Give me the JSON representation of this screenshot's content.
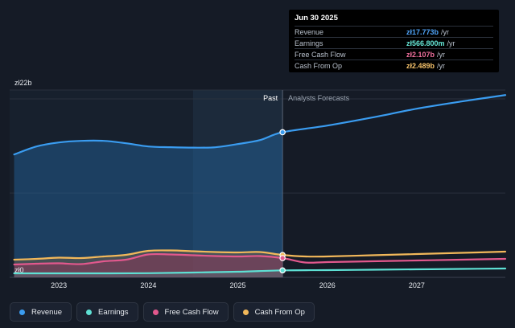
{
  "tooltip": {
    "date": "Jun 30 2025",
    "rows": [
      {
        "label": "Revenue",
        "value": "zł17.773b",
        "unit": "/yr",
        "color": "#4fa3f7"
      },
      {
        "label": "Earnings",
        "value": "zł566.800m",
        "unit": "/yr",
        "color": "#67e8d8"
      },
      {
        "label": "Free Cash Flow",
        "value": "zł2.107b",
        "unit": "/yr",
        "color": "#ef6f9c"
      },
      {
        "label": "Cash From Op",
        "value": "zł2.489b",
        "unit": "/yr",
        "color": "#f5c26b"
      }
    ]
  },
  "divider": {
    "past_label": "Past",
    "forecast_label": "Analysts Forecasts"
  },
  "legend": [
    {
      "label": "Revenue",
      "color": "#3b9cf0"
    },
    {
      "label": "Earnings",
      "color": "#5ee0d4"
    },
    {
      "label": "Free Cash Flow",
      "color": "#e2588d"
    },
    {
      "label": "Cash From Op",
      "color": "#f2b85a"
    }
  ],
  "chart_data": {
    "type": "area",
    "ylabel_top": "zł22b",
    "ylabel_bottom": "zł0",
    "ylim": [
      0,
      22
    ],
    "xlim": [
      2022.45,
      2027.99
    ],
    "x_ticks": [
      2023,
      2024,
      2025,
      2026,
      2027
    ],
    "x_tick_labels": [
      "2023",
      "2024",
      "2025",
      "2026",
      "2027"
    ],
    "divider_x": 2025.5,
    "series": [
      {
        "name": "Revenue",
        "color": "#3a9cf0",
        "x": [
          2022.5,
          2022.75,
          2023.0,
          2023.25,
          2023.5,
          2023.75,
          2024.0,
          2024.25,
          2024.5,
          2024.75,
          2025.0,
          2025.25,
          2025.5,
          2026.0,
          2026.5,
          2027.0,
          2027.5,
          2027.99
        ],
        "y": [
          15.0,
          16.0,
          16.5,
          16.7,
          16.7,
          16.4,
          16.0,
          15.9,
          15.85,
          15.9,
          16.3,
          16.8,
          17.77,
          18.6,
          19.6,
          20.7,
          21.6,
          22.4
        ]
      },
      {
        "name": "Cash From Op",
        "color": "#f2b85a",
        "x": [
          2022.5,
          2022.75,
          2023.0,
          2023.25,
          2023.5,
          2023.75,
          2024.0,
          2024.25,
          2024.5,
          2024.75,
          2025.0,
          2025.25,
          2025.5,
          2025.75,
          2026.0,
          2026.5,
          2027.0,
          2027.5,
          2027.99
        ],
        "y": [
          1.9,
          2.0,
          2.15,
          2.1,
          2.3,
          2.5,
          3.0,
          3.05,
          2.95,
          2.85,
          2.8,
          2.85,
          2.49,
          2.3,
          2.3,
          2.45,
          2.6,
          2.75,
          2.9
        ]
      },
      {
        "name": "Free Cash Flow",
        "color": "#e2588d",
        "x": [
          2022.5,
          2022.75,
          2023.0,
          2023.25,
          2023.5,
          2023.75,
          2024.0,
          2024.25,
          2024.5,
          2024.75,
          2025.0,
          2025.25,
          2025.5,
          2025.75,
          2026.0,
          2026.5,
          2027.0,
          2027.5,
          2027.99
        ],
        "y": [
          1.3,
          1.4,
          1.45,
          1.35,
          1.7,
          1.9,
          2.55,
          2.55,
          2.45,
          2.35,
          2.3,
          2.35,
          2.1,
          1.55,
          1.6,
          1.7,
          1.8,
          1.9,
          2.0
        ]
      },
      {
        "name": "Earnings",
        "color": "#5ee0d4",
        "x": [
          2022.5,
          2023.0,
          2023.5,
          2024.0,
          2024.5,
          2025.0,
          2025.5,
          2026.0,
          2026.5,
          2027.0,
          2027.5,
          2027.99
        ],
        "y": [
          0.2,
          0.2,
          0.2,
          0.22,
          0.3,
          0.4,
          0.567,
          0.6,
          0.65,
          0.7,
          0.75,
          0.8
        ]
      }
    ]
  }
}
